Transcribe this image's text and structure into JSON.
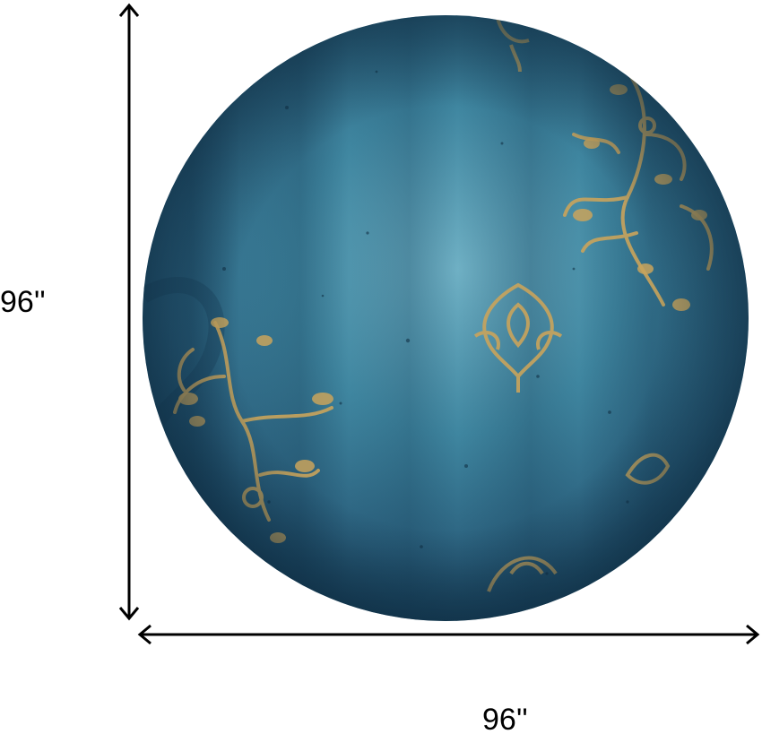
{
  "dimensions": {
    "height_label": "96''",
    "width_label": "96''"
  },
  "colors": {
    "rug_base": "#2f6f8a",
    "rug_light": "#6fb0c4",
    "rug_dark": "#163d57",
    "ornament_gold": "#c9a45c",
    "arrow": "#000000"
  }
}
